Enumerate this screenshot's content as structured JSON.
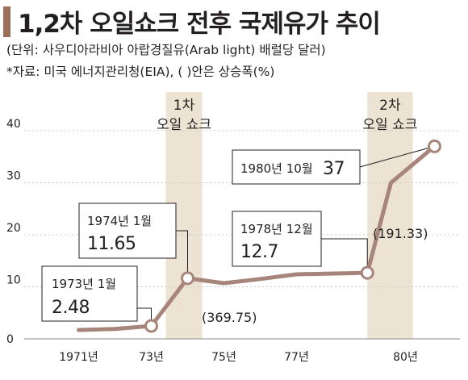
{
  "header": {
    "title": "1,2차 오일쇼크 전후 국제유가 추이",
    "subtitle": "(단위: 사우디아라비아 아랍경질유(Arab light) 배럴당 달러)",
    "source": "*자료: 미국 에너지관리청(EIA), (   )안은 상승폭(%)"
  },
  "colors": {
    "line": "#a8857a",
    "band": "#ede3d3",
    "grid": "#c8c8c8",
    "title_bar": "#9a6f5c"
  },
  "chart_data": {
    "type": "line",
    "x_tick_labels": [
      "1971년",
      "73년",
      "75년",
      "77년",
      "80년"
    ],
    "x_tick_values": [
      1971,
      1973,
      1975,
      1977,
      1980
    ],
    "y_ticks": [
      0,
      10,
      20,
      30,
      40
    ],
    "xlim": [
      1969.5,
      1981.5
    ],
    "ylim": [
      0,
      40
    ],
    "grid": "horizontal-dotted",
    "series": [
      {
        "x": [
          1971.0,
          1972.0,
          1973.0,
          1974.0,
          1975.0,
          1976.0,
          1977.0,
          1978.95,
          1979.6,
          1980.8
        ],
        "y": [
          1.7,
          1.9,
          2.48,
          11.65,
          10.7,
          11.5,
          12.4,
          12.7,
          30.0,
          37.0
        ]
      }
    ],
    "shocks": [
      {
        "label_line1": "1차",
        "label_line2": "오일 쇼크",
        "x_start": 1973.4,
        "x_end": 1974.4
      },
      {
        "label_line1": "2차",
        "label_line2": "오일 쇼크",
        "x_start": 1978.95,
        "x_end": 1980.2
      }
    ],
    "callouts": [
      {
        "date": "1973년 1월",
        "value": "2.48"
      },
      {
        "date": "1974년 1월",
        "value": "11.65"
      },
      {
        "date": "1978년 12월",
        "value": "12.7"
      },
      {
        "date": "1980년 10월",
        "value": "37"
      }
    ],
    "increase_labels": [
      "(369.75)",
      "(191.33)"
    ]
  }
}
